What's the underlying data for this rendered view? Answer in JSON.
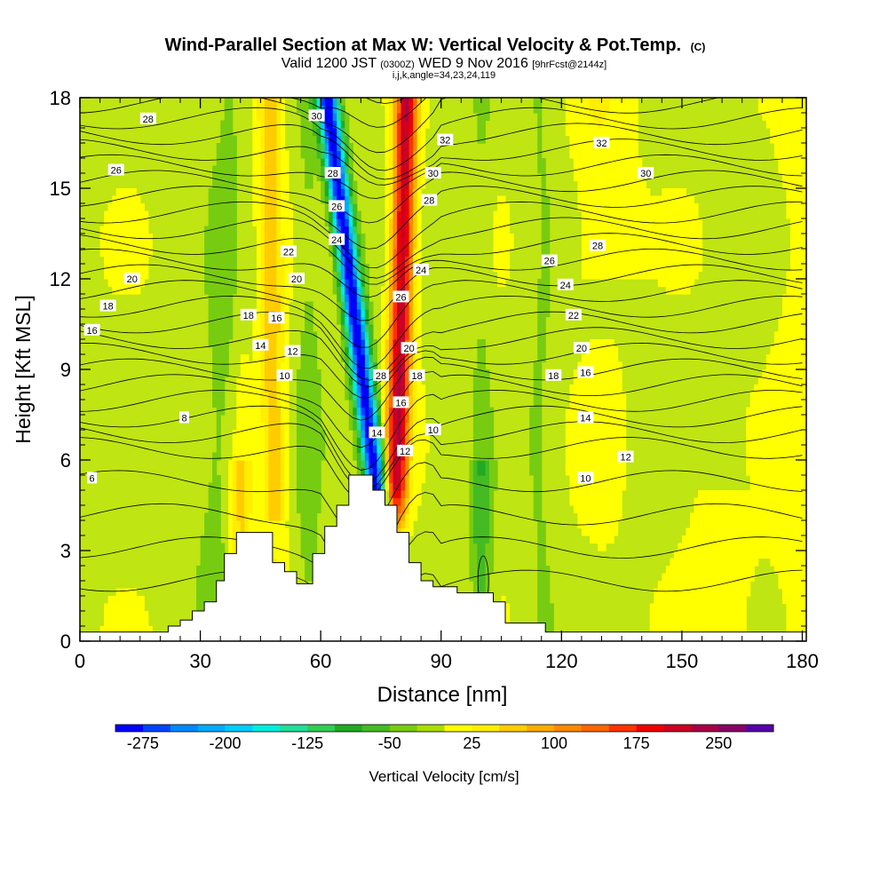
{
  "chart_data": {
    "type": "contour",
    "title": "Wind-Parallel Section at Max W: Vertical Velocity & Pot.Temp.",
    "title_unit": "(C)",
    "subtitle": {
      "a": "Valid 1200 JST",
      "b": "(0300Z)",
      "c": "WED 9 Nov 2016",
      "d": "[9hrFcst@2144z]"
    },
    "subtitle2": "i,j,k,angle=34,23,24,119",
    "xlabel": "Distance [nm]",
    "ylabel": "Height [Kft MSL]",
    "xlim": [
      0,
      181
    ],
    "ylim": [
      0,
      18
    ],
    "x_ticks": [
      "0",
      "30",
      "60",
      "90",
      "120",
      "150",
      "180"
    ],
    "y_ticks": [
      "0",
      "3",
      "6",
      "9",
      "12",
      "15",
      "18"
    ],
    "colorbar": {
      "label": "Vertical Velocity [cm/s]",
      "tick_labels": [
        "-275",
        "-200",
        "-125",
        "-50",
        "25",
        "100",
        "175",
        "250"
      ],
      "colors": [
        "#0000ff",
        "#0044ff",
        "#0088ff",
        "#00aaff",
        "#00ccff",
        "#00eedd",
        "#22dd99",
        "#33cc55",
        "#22aa22",
        "#44bb22",
        "#77cc11",
        "#aadd00",
        "#ffff00",
        "#ffee00",
        "#ffcc00",
        "#ffaa00",
        "#ff8800",
        "#ff6600",
        "#ff3300",
        "#ee0000",
        "#cc0022",
        "#aa0044",
        "#880066",
        "#5500aa"
      ]
    },
    "terrain_profile": [
      [
        0,
        0.3
      ],
      [
        22,
        0.3
      ],
      [
        22,
        0.5
      ],
      [
        25,
        0.5
      ],
      [
        25,
        0.7
      ],
      [
        28,
        0.7
      ],
      [
        28,
        1.0
      ],
      [
        31,
        1.0
      ],
      [
        31,
        1.3
      ],
      [
        34,
        1.3
      ],
      [
        34,
        2.0
      ],
      [
        36,
        2.0
      ],
      [
        36,
        2.9
      ],
      [
        39,
        2.9
      ],
      [
        39,
        3.6
      ],
      [
        48,
        3.6
      ],
      [
        48,
        2.6
      ],
      [
        51,
        2.6
      ],
      [
        51,
        2.3
      ],
      [
        54,
        2.3
      ],
      [
        54,
        1.9
      ],
      [
        58,
        1.9
      ],
      [
        58,
        2.9
      ],
      [
        61,
        2.9
      ],
      [
        61,
        3.8
      ],
      [
        64,
        3.8
      ],
      [
        64,
        4.5
      ],
      [
        67,
        4.5
      ],
      [
        67,
        5.5
      ],
      [
        73,
        5.5
      ],
      [
        73,
        5.0
      ],
      [
        76,
        5.0
      ],
      [
        76,
        4.5
      ],
      [
        79,
        4.5
      ],
      [
        79,
        3.6
      ],
      [
        82,
        3.6
      ],
      [
        82,
        2.6
      ],
      [
        85,
        2.6
      ],
      [
        85,
        2.0
      ],
      [
        88,
        2.0
      ],
      [
        88,
        1.8
      ],
      [
        94,
        1.8
      ],
      [
        94,
        1.6
      ],
      [
        103,
        1.6
      ],
      [
        103,
        1.3
      ],
      [
        106,
        1.3
      ],
      [
        106,
        0.6
      ],
      [
        116,
        0.6
      ],
      [
        116,
        0.3
      ],
      [
        181,
        0.3
      ]
    ],
    "theta_contour_labels": [
      {
        "label": "28",
        "x": 17,
        "y": 17.3
      },
      {
        "label": "26",
        "x": 9,
        "y": 15.6
      },
      {
        "label": "20",
        "x": 13,
        "y": 12.0
      },
      {
        "label": "18",
        "x": 7,
        "y": 11.1
      },
      {
        "label": "16",
        "x": 3,
        "y": 10.3
      },
      {
        "label": "8",
        "x": 26,
        "y": 7.4
      },
      {
        "label": "6",
        "x": 3,
        "y": 5.4
      },
      {
        "label": "30",
        "x": 59,
        "y": 17.4
      },
      {
        "label": "28",
        "x": 63,
        "y": 15.5
      },
      {
        "label": "26",
        "x": 64,
        "y": 14.4
      },
      {
        "label": "24",
        "x": 64,
        "y": 13.3
      },
      {
        "label": "22",
        "x": 52,
        "y": 12.9
      },
      {
        "label": "20",
        "x": 54,
        "y": 12.0
      },
      {
        "label": "18",
        "x": 42,
        "y": 10.8
      },
      {
        "label": "16",
        "x": 49,
        "y": 10.7
      },
      {
        "label": "14",
        "x": 45,
        "y": 9.8
      },
      {
        "label": "12",
        "x": 53,
        "y": 9.6
      },
      {
        "label": "10",
        "x": 51,
        "y": 8.8
      },
      {
        "label": "28",
        "x": 75,
        "y": 8.8
      },
      {
        "label": "26",
        "x": 80,
        "y": 11.4
      },
      {
        "label": "24",
        "x": 85,
        "y": 12.3
      },
      {
        "label": "20",
        "x": 82,
        "y": 9.7
      },
      {
        "label": "18",
        "x": 84,
        "y": 8.8
      },
      {
        "label": "16",
        "x": 80,
        "y": 7.9
      },
      {
        "label": "14",
        "x": 74,
        "y": 6.9
      },
      {
        "label": "12",
        "x": 81,
        "y": 6.3
      },
      {
        "label": "10",
        "x": 88,
        "y": 7.0
      },
      {
        "label": "32",
        "x": 91,
        "y": 16.6
      },
      {
        "label": "30",
        "x": 88,
        "y": 15.5
      },
      {
        "label": "28",
        "x": 87,
        "y": 14.6
      },
      {
        "label": "32",
        "x": 130,
        "y": 16.5
      },
      {
        "label": "30",
        "x": 141,
        "y": 15.5
      },
      {
        "label": "28",
        "x": 129,
        "y": 13.1
      },
      {
        "label": "26",
        "x": 117,
        "y": 12.6
      },
      {
        "label": "24",
        "x": 121,
        "y": 11.8
      },
      {
        "label": "22",
        "x": 123,
        "y": 10.8
      },
      {
        "label": "20",
        "x": 125,
        "y": 9.7
      },
      {
        "label": "18",
        "x": 118,
        "y": 8.8
      },
      {
        "label": "16",
        "x": 126,
        "y": 8.9
      },
      {
        "label": "14",
        "x": 126,
        "y": 7.4
      },
      {
        "label": "12",
        "x": 136,
        "y": 6.1
      },
      {
        "label": "10",
        "x": 126,
        "y": 5.4
      }
    ]
  }
}
